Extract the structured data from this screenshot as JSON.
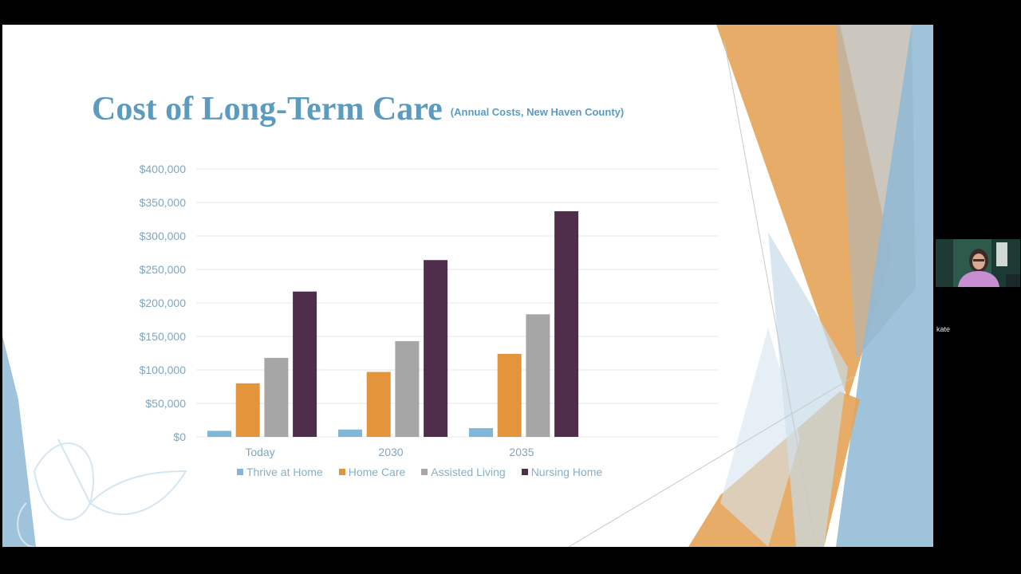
{
  "slide": {
    "title": "Cost of Long-Term Care",
    "subtitle": "(Annual Costs, New Haven County)"
  },
  "colors": {
    "title": "#5b9bbf",
    "thrive": "#7fb7d8",
    "home_care": "#e4943a",
    "assisted": "#a6a6a6",
    "nursing": "#4e2e4a",
    "deco_orange": "#e4a356",
    "deco_blue": "#8fb9d6"
  },
  "chart_data": {
    "type": "bar",
    "categories": [
      "Today",
      "2030",
      "2035"
    ],
    "series": [
      {
        "name": "Thrive at Home",
        "values": [
          9000,
          11000,
          13000
        ]
      },
      {
        "name": "Home Care",
        "values": [
          80000,
          97000,
          124000
        ]
      },
      {
        "name": "Assisted Living",
        "values": [
          118000,
          143000,
          183000
        ]
      },
      {
        "name": "Nursing Home",
        "values": [
          217000,
          264000,
          337000
        ]
      }
    ],
    "y_ticks": [
      "$0",
      "$50,000",
      "$100,000",
      "$150,000",
      "$200,000",
      "$250,000",
      "$300,000",
      "$350,000",
      "$400,000"
    ],
    "ylim": [
      0,
      400000
    ],
    "grid": true,
    "legend_position": "bottom"
  },
  "video_call": {
    "participant_name": "kate"
  }
}
